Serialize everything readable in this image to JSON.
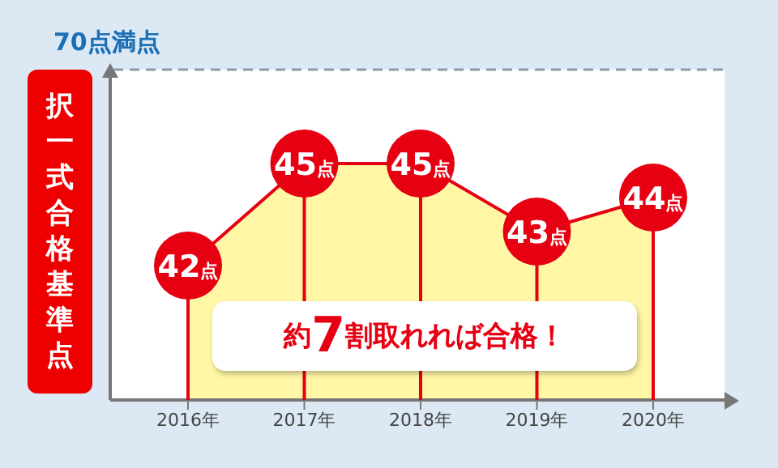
{
  "chart_data": {
    "type": "area",
    "ylabel": "択一式合格基準点",
    "categories": [
      "2016年",
      "2017年",
      "2018年",
      "2019年",
      "2020年"
    ],
    "series": [
      {
        "color": "#e60012",
        "values": [
          42,
          45,
          45,
          43,
          44
        ],
        "value_labels": [
          "42点",
          "45点",
          "45点",
          "43点",
          "44点"
        ]
      }
    ],
    "annotations": [
      "70点満点",
      "約7割取れれば合格！"
    ],
    "marker": "circle"
  }
}
